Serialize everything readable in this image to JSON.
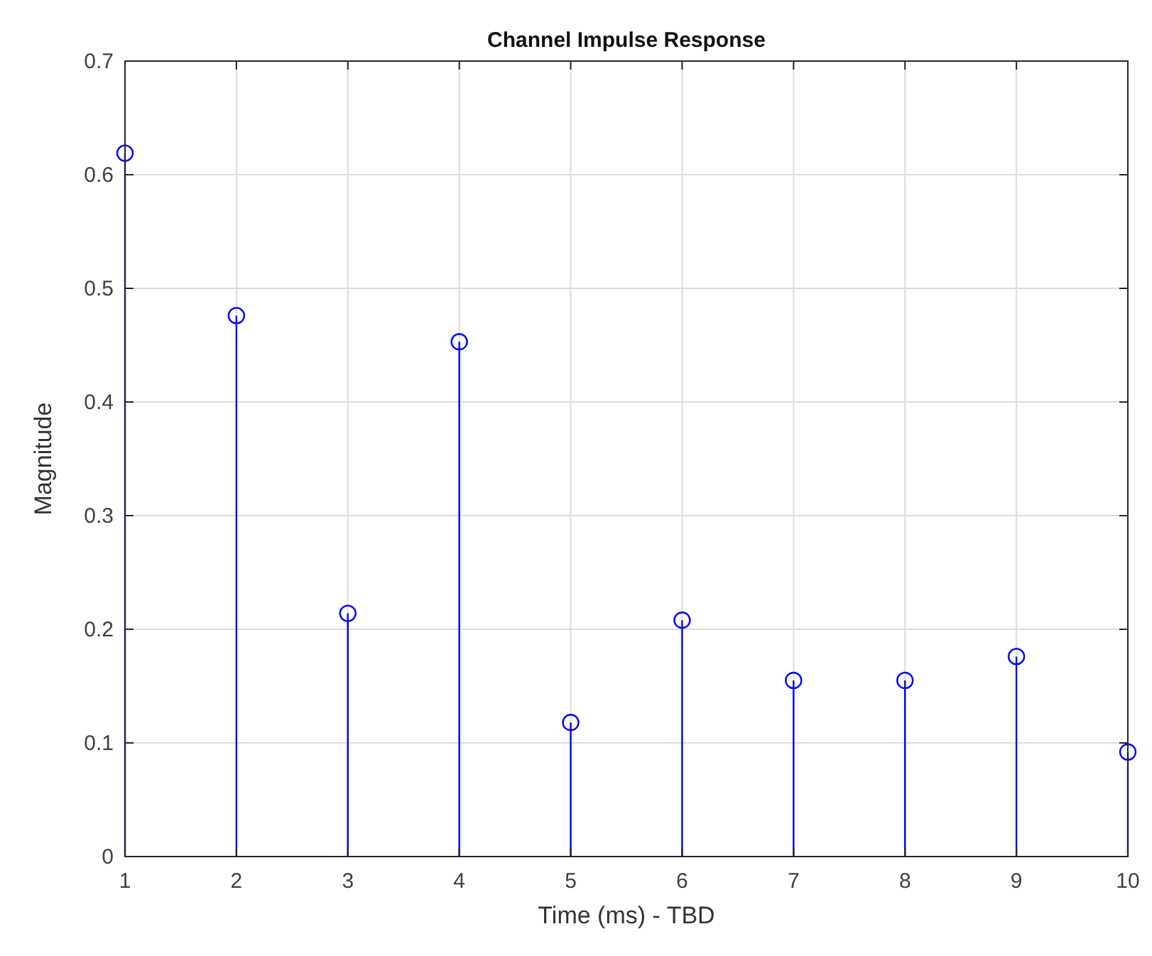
{
  "chart_data": {
    "type": "lollipop",
    "title": "Channel Impulse Response",
    "xlabel": "Time (ms) - TBD",
    "ylabel": "Magnitude",
    "x": [
      1,
      2,
      3,
      4,
      5,
      6,
      7,
      8,
      9,
      10
    ],
    "values": [
      0.619,
      0.476,
      0.214,
      0.453,
      0.118,
      0.208,
      0.155,
      0.155,
      0.176,
      0.092
    ],
    "color": "#0000ff",
    "marker": "circle",
    "xlim": [
      1,
      10
    ],
    "xticks": [
      1,
      2,
      3,
      4,
      5,
      6,
      7,
      8,
      9,
      10
    ],
    "ylim": [
      0,
      0.7
    ],
    "yticks": [
      0,
      0.1,
      0.2,
      0.3,
      0.4,
      0.5,
      0.6,
      0.7
    ],
    "grid": true
  }
}
